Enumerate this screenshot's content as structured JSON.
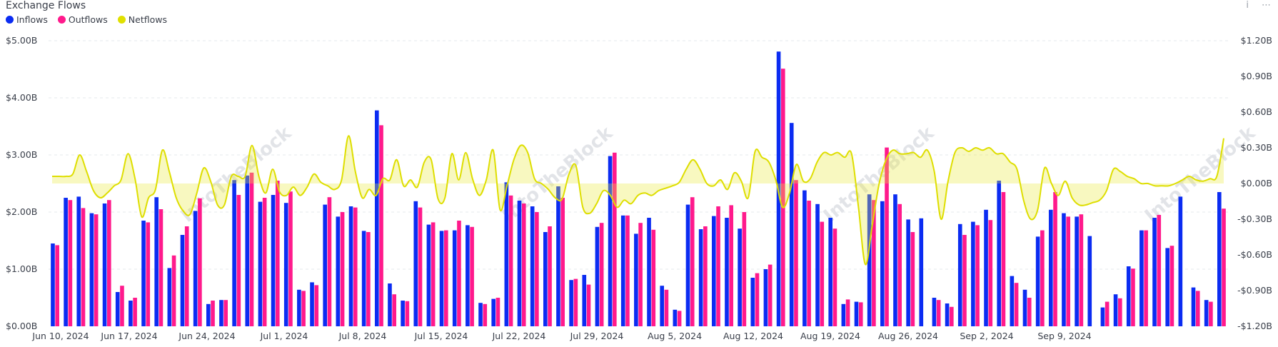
{
  "title": "Exchange Flows",
  "legend": [
    {
      "name": "Inflows",
      "color": "#0b2cf2"
    },
    {
      "name": "Outflows",
      "color": "#ff1a8c"
    },
    {
      "name": "Netflows",
      "color": "#e0e000"
    }
  ],
  "toolbar": {
    "info": "i",
    "more": "⋯"
  },
  "watermark": "IntoTheBlock",
  "chart_data": {
    "type": "bar",
    "x_tick_labels": [
      "Jun 10, 2024",
      "Jun 17, 2024",
      "Jun 24, 2024",
      "Jul 1, 2024",
      "Jul 8, 2024",
      "Jul 15, 2024",
      "Jul 22, 2024",
      "Jul 29, 2024",
      "Aug 5, 2024",
      "Aug 12, 2024",
      "Aug 19, 2024",
      "Aug 26, 2024",
      "Sep 2, 2024",
      "Sep 9, 2024"
    ],
    "y_left": {
      "ticks": [
        "$0.00B",
        "$1.00B",
        "$2.00B",
        "$3.00B",
        "$4.00B",
        "$5.00B"
      ],
      "range": [
        0,
        5.0
      ]
    },
    "y_right": {
      "ticks": [
        "-$1.20B",
        "-$0.90B",
        "-$0.60B",
        "-$0.30B",
        "$0.00B",
        "$0.30B",
        "$0.60B",
        "$0.90B",
        "$1.20B"
      ],
      "range": [
        -1.2,
        1.2
      ]
    },
    "grid": true,
    "legend_position": "top-left",
    "series": [
      {
        "name": "Inflows",
        "values": [
          1.45,
          2.25,
          2.27,
          1.98,
          2.15,
          0.6,
          0.45,
          1.85,
          2.26,
          1.02,
          1.6,
          2.02,
          0.39,
          0.46,
          2.56,
          2.64,
          2.18,
          2.3,
          2.16,
          0.64,
          0.77,
          2.13,
          1.92,
          2.1,
          1.67,
          3.78,
          0.75,
          0.45,
          2.19,
          1.78,
          1.67,
          1.68,
          1.77,
          0.41,
          0.48,
          2.52,
          2.2,
          2.1,
          1.65,
          2.45,
          0.81,
          0.9,
          1.74,
          2.98,
          1.94,
          1.62,
          1.9,
          0.71,
          0.29,
          2.13,
          1.7,
          1.93,
          1.9,
          1.71,
          0.85,
          1.0,
          4.81,
          3.56,
          2.38,
          2.14,
          1.9,
          0.39,
          0.43,
          2.31,
          2.19,
          2.31,
          1.87,
          1.89,
          0.5,
          0.4,
          1.79,
          1.83,
          2.04,
          2.55,
          0.88,
          0.64,
          1.57,
          2.04,
          1.98,
          1.92,
          1.58,
          0.33,
          0.56,
          1.05,
          1.68,
          1.9,
          1.37,
          2.27,
          0.68,
          0.46,
          2.35
        ]
      },
      {
        "name": "Outflows",
        "values": [
          1.42,
          2.21,
          2.07,
          1.96,
          2.21,
          0.71,
          0.5,
          1.82,
          2.05,
          1.24,
          1.75,
          2.24,
          0.45,
          0.46,
          2.3,
          2.69,
          2.25,
          2.55,
          2.36,
          0.62,
          0.72,
          2.26,
          2.0,
          2.08,
          1.65,
          3.52,
          0.56,
          0.44,
          2.08,
          1.82,
          1.68,
          1.85,
          1.74,
          0.39,
          0.5,
          2.29,
          2.15,
          2.0,
          1.75,
          2.25,
          0.83,
          0.73,
          1.81,
          3.04,
          1.94,
          1.81,
          1.69,
          0.64,
          0.27,
          2.26,
          1.75,
          2.1,
          2.12,
          2.0,
          0.93,
          1.08,
          4.51,
          2.56,
          2.2,
          1.83,
          1.71,
          0.47,
          0.42,
          2.21,
          3.13,
          2.14,
          1.65,
          0.0,
          0.46,
          0.34,
          1.6,
          1.77,
          1.86,
          2.35,
          0.76,
          0.5,
          1.68,
          2.35,
          1.92,
          1.96,
          0.0,
          0.43,
          0.49,
          1.01,
          1.68,
          1.95,
          1.41,
          0.0,
          0.62,
          0.43,
          2.06
        ]
      },
      {
        "name": "Netflows",
        "values": [
          0.06,
          0.06,
          0.06,
          0.08,
          0.24,
          0.1,
          -0.06,
          -0.12,
          -0.08,
          -0.02,
          0.03,
          0.25,
          0.05,
          -0.28,
          -0.12,
          -0.05,
          0.28,
          0.1,
          -0.12,
          -0.23,
          -0.26,
          -0.08,
          0.13,
          0.02,
          -0.18,
          -0.18,
          0.06,
          0.06,
          0.06,
          0.32,
          0.06,
          -0.08,
          0.12,
          -0.07,
          -0.1,
          -0.03,
          -0.1,
          -0.03,
          0.08,
          0.01,
          -0.02,
          -0.05,
          0.03,
          0.4,
          0.1,
          -0.12,
          -0.05,
          -0.1,
          0.04,
          0.03,
          0.2,
          -0.02,
          0.03,
          -0.03,
          0.18,
          0.2,
          -0.13,
          -0.12,
          0.25,
          0.03,
          0.26,
          0.04,
          -0.1,
          0.03,
          0.28,
          -0.22,
          -0.02,
          0.2,
          0.32,
          0.26,
          0.04,
          0.0,
          -0.05,
          -0.12,
          -0.13,
          0.08,
          0.15,
          -0.2,
          -0.25,
          -0.17,
          -0.06,
          -0.1,
          -0.2,
          -0.14,
          -0.17,
          -0.1,
          -0.08,
          -0.1,
          -0.06,
          -0.04,
          -0.02,
          0.01,
          0.12,
          0.2,
          0.12,
          0.0,
          -0.02,
          0.03,
          -0.05,
          0.09,
          0.02,
          -0.12,
          0.27,
          0.22,
          0.18,
          0.03,
          -0.2,
          -0.08,
          0.16,
          0.02,
          0.04,
          0.18,
          0.26,
          0.24,
          0.26,
          0.22,
          0.25,
          -0.2,
          -0.68,
          -0.35,
          0.0,
          0.2,
          0.28,
          0.25,
          0.25,
          0.26,
          0.22,
          0.28,
          0.1,
          -0.3,
          0.02,
          0.26,
          0.3,
          0.27,
          0.3,
          0.28,
          0.3,
          0.25,
          0.25,
          0.18,
          0.12,
          -0.15,
          -0.3,
          -0.22,
          0.13,
          0.0,
          -0.1,
          0.02,
          -0.12,
          -0.18,
          -0.18,
          -0.16,
          -0.14,
          -0.06,
          0.12,
          0.1,
          0.06,
          0.04,
          0.0,
          0.0,
          -0.02,
          -0.02,
          -0.02,
          0.0,
          0.03,
          0.06,
          0.03,
          0.02,
          0.04,
          0.06,
          0.38
        ]
      }
    ]
  }
}
